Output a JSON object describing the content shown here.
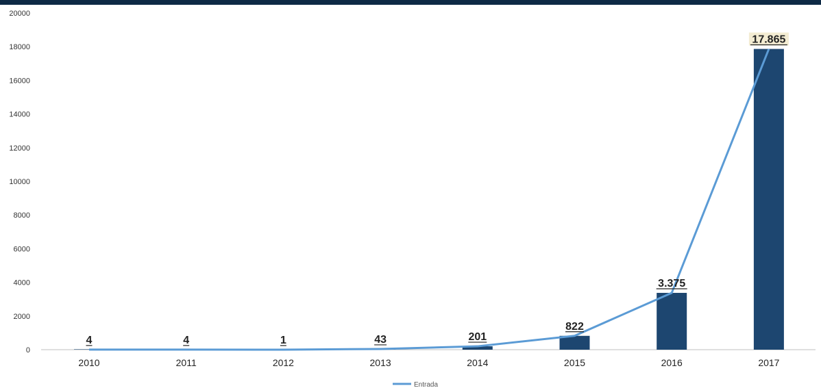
{
  "colors": {
    "top_band": "#0e2a45",
    "bar": "#1d4670",
    "line": "#5b9bd5",
    "axis": "#bfbfbf",
    "highlight_label_bg": "#f3ecd2"
  },
  "chart_data": {
    "type": "bar",
    "categories": [
      "2010",
      "2011",
      "2012",
      "2013",
      "2014",
      "2015",
      "2016",
      "2017"
    ],
    "values": [
      4,
      4,
      1,
      43,
      201,
      822,
      3375,
      17865
    ],
    "data_labels": [
      "4",
      "4",
      "1",
      "43",
      "201",
      "822",
      "3.375",
      "17.865"
    ],
    "highlighted_label_index": 7,
    "line_series": {
      "name": "Entrada",
      "values": [
        4,
        4,
        1,
        43,
        201,
        822,
        3375,
        17865
      ]
    },
    "yticks": [
      "0",
      "2000",
      "4000",
      "6000",
      "8000",
      "10000",
      "12000",
      "14000",
      "16000",
      "18000",
      "20000"
    ],
    "ylim": [
      0,
      20000
    ],
    "grid": false,
    "legend_position": "bottom-center",
    "title": "",
    "xlabel": "",
    "ylabel": ""
  }
}
